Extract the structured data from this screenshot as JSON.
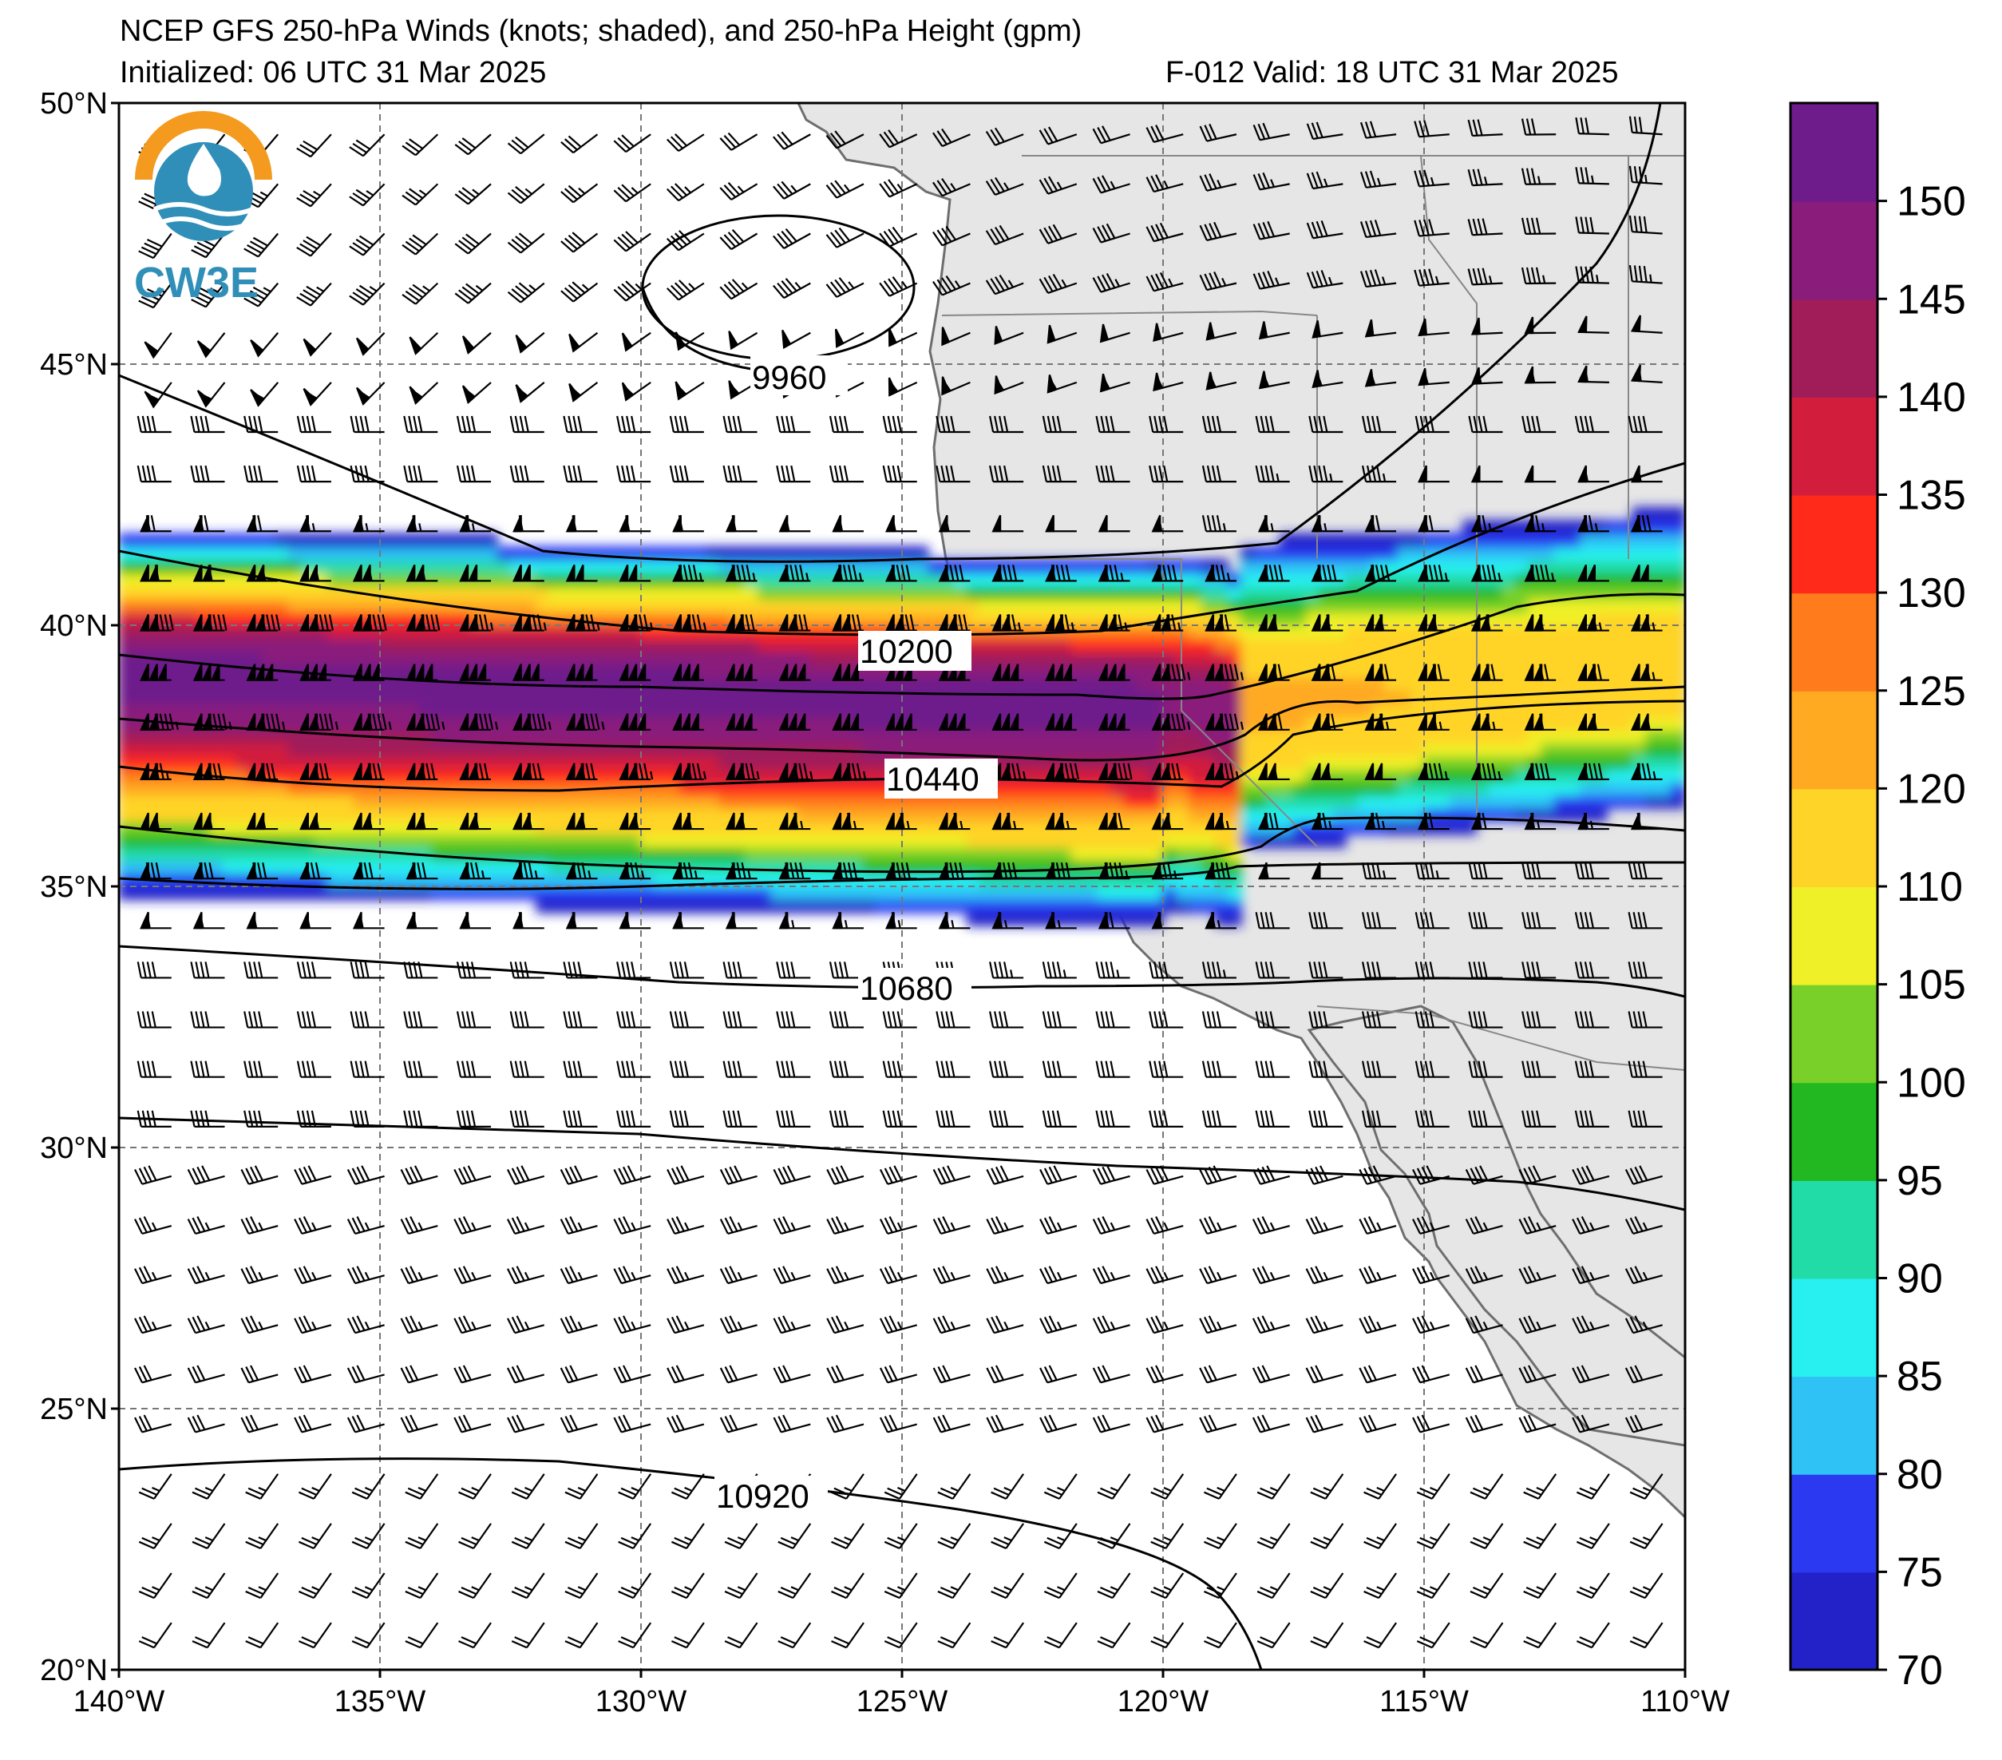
{
  "title": {
    "line1": "NCEP GFS 250-hPa Winds (knots; shaded), and 250-hPa Height (gpm)",
    "line2_left": "Initialized: 06 UTC 31 Mar 2025",
    "line2_right": "F-012  Valid: 18 UTC 31 Mar 2025"
  },
  "logo": {
    "text": "CW3E",
    "color": "#2f8fb8",
    "accent": "#f39a1f"
  },
  "map": {
    "lon_range": [
      -140,
      -110
    ],
    "lat_range": [
      20,
      50
    ],
    "lon_ticks": [
      {
        "value": -140,
        "label": "140°W"
      },
      {
        "value": -135,
        "label": "135°W"
      },
      {
        "value": -130,
        "label": "130°W"
      },
      {
        "value": -125,
        "label": "125°W"
      },
      {
        "value": -120,
        "label": "120°W"
      },
      {
        "value": -115,
        "label": "115°W"
      },
      {
        "value": -110,
        "label": "110°W"
      }
    ],
    "lat_ticks": [
      {
        "value": 50,
        "label": "50°N"
      },
      {
        "value": 45,
        "label": "45°N"
      },
      {
        "value": 40,
        "label": "40°N"
      },
      {
        "value": 35,
        "label": "35°N"
      },
      {
        "value": 30,
        "label": "30°N"
      },
      {
        "value": 25,
        "label": "25°N"
      },
      {
        "value": 20,
        "label": "20°N"
      }
    ],
    "land_color": "#e6e6e6",
    "ocean_color": "#ffffff",
    "gridlines": true
  },
  "height_contours": [
    {
      "value": 9960,
      "label": "9960",
      "closed_low_center": [
        -127.5,
        46.2
      ]
    },
    {
      "value": 10200,
      "label": "10200",
      "label_at": [
        -125.2,
        39.6
      ]
    },
    {
      "value": 10440,
      "label": "10440",
      "label_at": [
        -124.3,
        37.2
      ]
    },
    {
      "value": 10680,
      "label": "10680",
      "label_at": [
        -124.8,
        33.2
      ]
    },
    {
      "value": 10920,
      "label": "10920",
      "label_at": [
        -127.9,
        23.5
      ]
    }
  ],
  "wind_jet_core": {
    "max_speed_kt": 150,
    "axis_lat": 38.8,
    "description_lon_range": [
      -140,
      -118.5
    ]
  },
  "colorbar": {
    "ticks": [
      "70",
      "75",
      "80",
      "85",
      "90",
      "95",
      "100",
      "105",
      "110",
      "120",
      "125",
      "130",
      "135",
      "140",
      "145",
      "150"
    ],
    "colors": [
      "#2222c8",
      "#2b3af0",
      "#2ec2f5",
      "#28f0f0",
      "#22dca8",
      "#22b822",
      "#78d028",
      "#f0f028",
      "#ffd428",
      "#ffaa20",
      "#ff7b1c",
      "#ff2a1a",
      "#d21e3c",
      "#a01d5a",
      "#8a1c7c",
      "#6e1c8c"
    ]
  }
}
